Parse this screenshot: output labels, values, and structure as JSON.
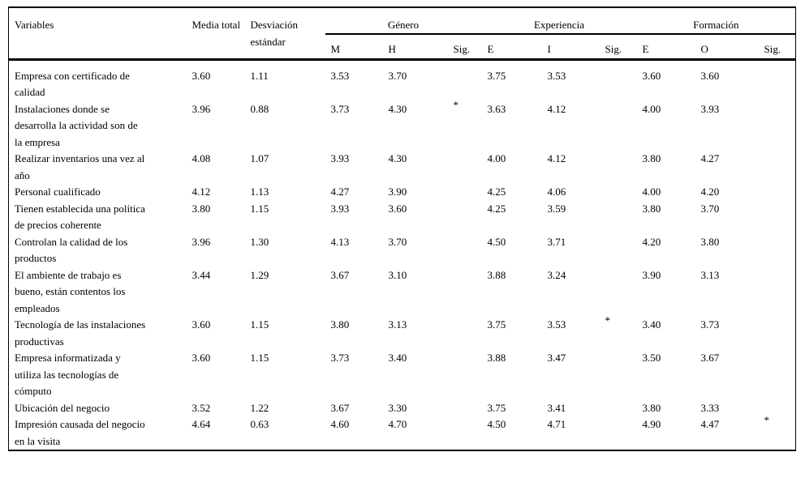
{
  "page": {
    "background_color": "#ffffff",
    "text_color": "#000000",
    "rule_color": "#000000"
  },
  "table": {
    "header": {
      "variables": "Variables",
      "media_total": "Media total",
      "desviacion_estandar": "Desviación estándar",
      "groups": [
        {
          "label": "Género",
          "cols": [
            "M",
            "H",
            "Sig."
          ]
        },
        {
          "label": "Experiencia",
          "cols": [
            "E",
            "I",
            "Sig."
          ]
        },
        {
          "label": "Formación",
          "cols": [
            "E",
            "O",
            "Sig."
          ]
        }
      ]
    },
    "rows": [
      {
        "variable": "Empresa con certificado de calidad",
        "media": "3.60",
        "desviacion": "1.11",
        "genero_m": "3.53",
        "genero_h": "3.70",
        "genero_sig": "",
        "exp_e": "3.75",
        "exp_i": "3.53",
        "exp_sig": "",
        "form_e": "3.60",
        "form_o": "3.60",
        "form_sig": ""
      },
      {
        "variable": "Instalaciones donde se desarrolla la actividad son de la empresa",
        "media": "3.96",
        "desviacion": "0.88",
        "genero_m": "3.73",
        "genero_h": "4.30",
        "genero_sig": "*",
        "exp_e": "3.63",
        "exp_i": "4.12",
        "exp_sig": "",
        "form_e": "4.00",
        "form_o": "3.93",
        "form_sig": ""
      },
      {
        "variable": "Realizar inventarios una vez al año",
        "media": "4.08",
        "desviacion": "1.07",
        "genero_m": "3.93",
        "genero_h": "4.30",
        "genero_sig": "",
        "exp_e": "4.00",
        "exp_i": "4.12",
        "exp_sig": "",
        "form_e": "3.80",
        "form_o": "4.27",
        "form_sig": ""
      },
      {
        "variable": "Personal cualificado",
        "media": "4.12",
        "desviacion": "1.13",
        "genero_m": "4.27",
        "genero_h": "3.90",
        "genero_sig": "",
        "exp_e": "4.25",
        "exp_i": "4.06",
        "exp_sig": "",
        "form_e": "4.00",
        "form_o": "4.20",
        "form_sig": ""
      },
      {
        "variable": "Tienen establecida una política de precios coherente",
        "media": "3.80",
        "desviacion": "1.15",
        "genero_m": "3.93",
        "genero_h": "3.60",
        "genero_sig": "",
        "exp_e": "4.25",
        "exp_i": "3.59",
        "exp_sig": "",
        "form_e": "3.80",
        "form_o": "3.70",
        "form_sig": ""
      },
      {
        "variable": "Controlan la calidad de los productos",
        "media": "3.96",
        "desviacion": "1.30",
        "genero_m": "4.13",
        "genero_h": "3.70",
        "genero_sig": "",
        "exp_e": "4.50",
        "exp_i": "3.71",
        "exp_sig": "",
        "form_e": "4.20",
        "form_o": "3.80",
        "form_sig": ""
      },
      {
        "variable": "El ambiente de trabajo es bueno, están contentos los empleados",
        "media": "3.44",
        "desviacion": "1.29",
        "genero_m": "3.67",
        "genero_h": "3.10",
        "genero_sig": "",
        "exp_e": "3.88",
        "exp_i": "3.24",
        "exp_sig": "",
        "form_e": "3.90",
        "form_o": "3.13",
        "form_sig": ""
      },
      {
        "variable": "Tecnología de las instalaciones productivas",
        "media": "3.60",
        "desviacion": "1.15",
        "genero_m": "3.80",
        "genero_h": "3.13",
        "genero_sig": "",
        "exp_e": "3.75",
        "exp_i": "3.53",
        "exp_sig": "*",
        "form_e": "3.40",
        "form_o": "3.73",
        "form_sig": ""
      },
      {
        "variable": "Empresa informatizada y utiliza las tecnologías de cómputo",
        "media": "3.60",
        "desviacion": "1.15",
        "genero_m": "3.73",
        "genero_h": "3.40",
        "genero_sig": "",
        "exp_e": "3.88",
        "exp_i": "3.47",
        "exp_sig": "",
        "form_e": "3.50",
        "form_o": "3.67",
        "form_sig": ""
      },
      {
        "variable": "Ubicación del negocio",
        "media": "3.52",
        "desviacion": "1.22",
        "genero_m": "3.67",
        "genero_h": "3.30",
        "genero_sig": "",
        "exp_e": "3.75",
        "exp_i": "3.41",
        "exp_sig": "",
        "form_e": "3.80",
        "form_o": "3.33",
        "form_sig": ""
      },
      {
        "variable": "Impresión causada del negocio en la visita",
        "media": "4.64",
        "desviacion": "0.63",
        "genero_m": "4.60",
        "genero_h": "4.70",
        "genero_sig": "",
        "exp_e": "4.50",
        "exp_i": "4.71",
        "exp_sig": "",
        "form_e": "4.90",
        "form_o": "4.47",
        "form_sig": "*"
      }
    ]
  }
}
